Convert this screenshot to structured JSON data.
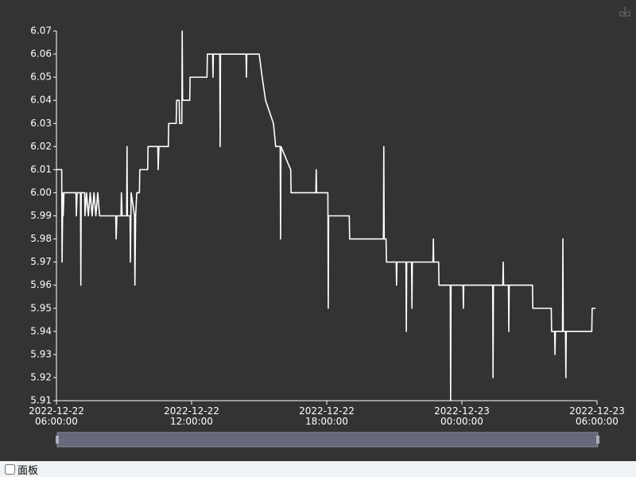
{
  "chart_data": {
    "type": "line",
    "color": "#ffffff",
    "x": [
      "2022-12-22 06:00:00",
      "2022-12-22 06:14:00",
      "2022-12-22 06:15:00",
      "2022-12-22 06:17:00",
      "2022-12-22 06:18:00",
      "2022-12-22 06:20:00",
      "2022-12-22 06:52:00",
      "2022-12-22 06:53:00",
      "2022-12-22 06:55:00",
      "2022-12-22 07:04:00",
      "2022-12-22 07:05:00",
      "2022-12-22 07:06:00",
      "2022-12-22 07:15:00",
      "2022-12-22 07:16:00",
      "2022-12-22 07:20:00",
      "2022-12-22 07:25:00",
      "2022-12-22 07:30:00",
      "2022-12-22 07:35:00",
      "2022-12-22 07:40:00",
      "2022-12-22 07:45:00",
      "2022-12-22 07:50:00",
      "2022-12-22 07:55:00",
      "2022-12-22 08:38:00",
      "2022-12-22 08:39:00",
      "2022-12-22 08:41:00",
      "2022-12-22 08:52:00",
      "2022-12-22 08:53:00",
      "2022-12-22 08:55:00",
      "2022-12-22 09:07:00",
      "2022-12-22 09:08:00",
      "2022-12-22 09:09:00",
      "2022-12-22 09:16:00",
      "2022-12-22 09:17:00",
      "2022-12-22 09:19:00",
      "2022-12-22 09:28:00",
      "2022-12-22 09:29:00",
      "2022-12-22 09:31:00",
      "2022-12-22 09:34:00",
      "2022-12-22 09:41:00",
      "2022-12-22 09:42:00",
      "2022-12-22 10:03:00",
      "2022-12-22 10:04:00",
      "2022-12-22 10:30:00",
      "2022-12-22 10:31:00",
      "2022-12-22 10:33:00",
      "2022-12-22 10:58:00",
      "2022-12-22 10:59:00",
      "2022-12-22 11:19:00",
      "2022-12-22 11:20:00",
      "2022-12-22 11:27:00",
      "2022-12-22 11:28:00",
      "2022-12-22 11:34:00",
      "2022-12-22 11:35:00",
      "2022-12-22 11:36:00",
      "2022-12-22 11:55:00",
      "2022-12-22 11:56:00",
      "2022-12-22 12:41:00",
      "2022-12-22 12:42:00",
      "2022-12-22 12:56:00",
      "2022-12-22 12:57:00",
      "2022-12-22 12:58:00",
      "2022-12-22 13:15:00",
      "2022-12-22 13:16:00",
      "2022-12-22 13:17:00",
      "2022-12-22 14:25:00",
      "2022-12-22 14:26:00",
      "2022-12-22 14:27:00",
      "2022-12-22 15:00:00",
      "2022-12-22 15:08:00",
      "2022-12-22 15:17:00",
      "2022-12-22 15:38:00",
      "2022-12-22 15:44:00",
      "2022-12-22 15:56:00",
      "2022-12-22 15:57:00",
      "2022-12-22 15:58:00",
      "2022-12-22 16:24:00",
      "2022-12-22 16:25:00",
      "2022-12-22 17:31:00",
      "2022-12-22 17:32:00",
      "2022-12-22 17:33:00",
      "2022-12-22 18:03:00",
      "2022-12-22 18:04:00",
      "2022-12-22 18:05:00",
      "2022-12-22 19:00:00",
      "2022-12-22 19:01:00",
      "2022-12-22 20:31:00",
      "2022-12-22 20:32:00",
      "2022-12-22 20:33:00",
      "2022-12-22 20:38:00",
      "2022-12-22 20:39:00",
      "2022-12-22 21:05:00",
      "2022-12-22 21:06:00",
      "2022-12-22 21:07:00",
      "2022-12-22 21:31:00",
      "2022-12-22 21:32:00",
      "2022-12-22 21:33:00",
      "2022-12-22 21:46:00",
      "2022-12-22 21:47:00",
      "2022-12-22 21:48:00",
      "2022-12-22 22:43:00",
      "2022-12-22 22:44:00",
      "2022-12-22 22:45:00",
      "2022-12-22 22:58:00",
      "2022-12-22 22:59:00",
      "2022-12-22 23:29:00",
      "2022-12-22 23:30:00",
      "2022-12-22 23:31:00",
      "2022-12-23 00:03:00",
      "2022-12-23 00:04:00",
      "2022-12-23 00:05:00",
      "2022-12-23 01:22:00",
      "2022-12-23 01:23:00",
      "2022-12-23 01:24:00",
      "2022-12-23 01:49:00",
      "2022-12-23 01:50:00",
      "2022-12-23 01:51:00",
      "2022-12-23 02:04:00",
      "2022-12-23 02:05:00",
      "2022-12-23 02:06:00",
      "2022-12-23 03:08:00",
      "2022-12-23 03:09:00",
      "2022-12-23 03:58:00",
      "2022-12-23 03:59:00",
      "2022-12-23 04:07:00",
      "2022-12-23 04:08:00",
      "2022-12-23 04:09:00",
      "2022-12-23 04:28:00",
      "2022-12-23 04:29:00",
      "2022-12-23 04:30:00",
      "2022-12-23 04:36:00",
      "2022-12-23 04:37:00",
      "2022-12-23 04:38:00",
      "2022-12-23 05:46:00",
      "2022-12-23 05:47:00",
      "2022-12-23 05:56:00"
    ],
    "values": [
      6.01,
      6.01,
      5.97,
      6.0,
      5.99,
      6.0,
      6.0,
      5.99,
      6.0,
      6.0,
      5.96,
      6.0,
      6.0,
      5.99,
      6.0,
      5.99,
      6.0,
      5.99,
      6.0,
      5.99,
      6.0,
      5.99,
      5.99,
      5.98,
      5.99,
      5.99,
      6.0,
      5.99,
      5.99,
      6.02,
      5.99,
      5.99,
      5.97,
      6.0,
      5.99,
      5.96,
      5.99,
      6.0,
      6.0,
      6.01,
      6.01,
      6.02,
      6.02,
      6.01,
      6.02,
      6.02,
      6.03,
      6.03,
      6.04,
      6.04,
      6.03,
      6.03,
      6.07,
      6.04,
      6.04,
      6.05,
      6.05,
      6.06,
      6.06,
      6.05,
      6.06,
      6.06,
      6.02,
      6.06,
      6.06,
      6.05,
      6.06,
      6.06,
      6.05,
      6.04,
      6.03,
      6.02,
      6.02,
      5.98,
      6.02,
      6.01,
      6.0,
      6.0,
      6.01,
      6.0,
      6.0,
      5.95,
      5.99,
      5.99,
      5.98,
      5.98,
      6.02,
      5.98,
      5.98,
      5.97,
      5.97,
      5.96,
      5.97,
      5.97,
      5.94,
      5.97,
      5.97,
      5.95,
      5.97,
      5.97,
      5.98,
      5.97,
      5.97,
      5.96,
      5.96,
      5.91,
      5.96,
      5.96,
      5.95,
      5.96,
      5.96,
      5.92,
      5.96,
      5.96,
      5.97,
      5.96,
      5.96,
      5.94,
      5.96,
      5.96,
      5.95,
      5.95,
      5.94,
      5.94,
      5.93,
      5.94,
      5.94,
      5.98,
      5.94,
      5.94,
      5.92,
      5.94,
      5.94,
      5.95,
      5.95
    ],
    "xlim": [
      "2022-12-22 06:00:00",
      "2022-12-23 06:00:00"
    ],
    "xticks": [
      "2022-12-22 06:00:00",
      "2022-12-22 12:00:00",
      "2022-12-22 18:00:00",
      "2022-12-23 00:00:00",
      "2022-12-23 06:00:00"
    ],
    "ylim": [
      5.91,
      6.07
    ],
    "yticks": [
      5.91,
      5.92,
      5.93,
      5.94,
      5.95,
      5.96,
      5.97,
      5.98,
      5.99,
      {
        "value": 6,
        "label": "6.00"
      },
      6.01,
      6.02,
      6.03,
      6.04,
      6.05,
      6.06,
      6.07
    ],
    "grid": false
  },
  "controls": {
    "panel_checkbox": "面板"
  }
}
